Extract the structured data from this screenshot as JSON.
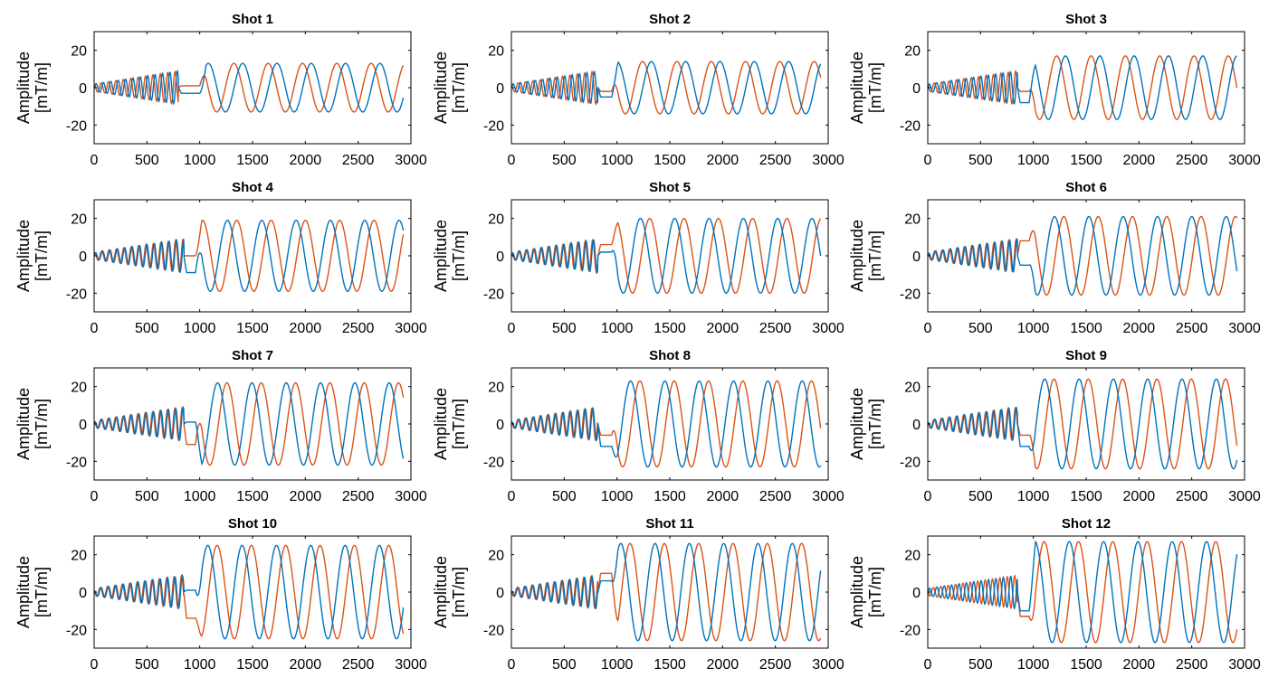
{
  "figure": {
    "colors": {
      "series_a": "#0072BD",
      "series_b": "#D95319",
      "axis": "#000000",
      "background": "#ffffff"
    }
  },
  "chart_data": [
    {
      "type": "line",
      "title": "Shot 1",
      "xlabel": "",
      "ylabel": [
        "Amplitude",
        "[mT/m]"
      ],
      "xlim": [
        0,
        3000
      ],
      "ylim": [
        -30,
        30
      ],
      "xticks": [
        0,
        500,
        1000,
        1500,
        2000,
        2500,
        3000
      ],
      "yticks": [
        -20,
        0,
        20
      ],
      "params": {
        "gap_start": 800,
        "gap_end": 1000,
        "series_a": {
          "plateau": -3,
          "amplitude": 13,
          "phase": 0.0
        },
        "series_b": {
          "plateau": 1,
          "amplitude": 13,
          "phase": 1.6
        }
      },
      "series": [
        {
          "name": "series_a",
          "color": "#0072BD"
        },
        {
          "name": "series_b",
          "color": "#D95319"
        }
      ]
    },
    {
      "type": "line",
      "title": "Shot 2",
      "xlabel": "",
      "ylabel": [
        "Amplitude",
        "[mT/m]"
      ],
      "xlim": [
        0,
        3000
      ],
      "ylim": [
        -30,
        30
      ],
      "xticks": [
        0,
        500,
        1000,
        1500,
        2000,
        2500,
        3000
      ],
      "yticks": [
        -20,
        0,
        20
      ],
      "params": {
        "gap_start": 820,
        "gap_end": 950,
        "series_a": {
          "plateau": -5,
          "amplitude": 14,
          "phase": 0.6
        },
        "series_b": {
          "plateau": -2,
          "amplitude": 14,
          "phase": 2.2
        }
      },
      "series": [
        {
          "name": "series_a",
          "color": "#0072BD"
        },
        {
          "name": "series_b",
          "color": "#D95319"
        }
      ]
    },
    {
      "type": "line",
      "title": "Shot 3",
      "xlabel": "",
      "ylabel": [
        "Amplitude",
        "[mT/m]"
      ],
      "xlim": [
        0,
        3000
      ],
      "ylim": [
        -30,
        30
      ],
      "xticks": [
        0,
        500,
        1000,
        1500,
        2000,
        2500,
        3000
      ],
      "yticks": [
        -20,
        0,
        20
      ],
      "params": {
        "gap_start": 850,
        "gap_end": 960,
        "series_a": {
          "plateau": -8,
          "amplitude": 17,
          "phase": 1.2
        },
        "series_b": {
          "plateau": -2,
          "amplitude": 17,
          "phase": 2.8
        }
      },
      "series": [
        {
          "name": "series_a",
          "color": "#0072BD"
        },
        {
          "name": "series_b",
          "color": "#D95319"
        }
      ]
    },
    {
      "type": "line",
      "title": "Shot 4",
      "xlabel": "",
      "ylabel": [
        "Amplitude",
        "[mT/m]"
      ],
      "xlim": [
        0,
        3000
      ],
      "ylim": [
        -30,
        30
      ],
      "xticks": [
        0,
        500,
        1000,
        1500,
        2000,
        2500,
        3000
      ],
      "yticks": [
        -20,
        0,
        20
      ],
      "params": {
        "gap_start": 850,
        "gap_end": 960,
        "series_a": {
          "plateau": -9,
          "amplitude": 19,
          "phase": 2.0
        },
        "series_b": {
          "plateau": 0,
          "amplitude": 19,
          "phase": 0.3
        }
      },
      "series": [
        {
          "name": "series_a",
          "color": "#0072BD"
        },
        {
          "name": "series_b",
          "color": "#D95319"
        }
      ]
    },
    {
      "type": "line",
      "title": "Shot 5",
      "xlabel": "",
      "ylabel": [
        "Amplitude",
        "[mT/m]"
      ],
      "xlim": [
        0,
        3000
      ],
      "ylim": [
        -30,
        30
      ],
      "xticks": [
        0,
        500,
        1000,
        1500,
        2000,
        2500,
        3000
      ],
      "yticks": [
        -20,
        0,
        20
      ],
      "params": {
        "gap_start": 820,
        "gap_end": 950,
        "series_a": {
          "plateau": 2,
          "amplitude": 20,
          "phase": 2.6
        },
        "series_b": {
          "plateau": 6,
          "amplitude": 20,
          "phase": 0.9
        }
      },
      "series": [
        {
          "name": "series_a",
          "color": "#0072BD"
        },
        {
          "name": "series_b",
          "color": "#D95319"
        }
      ]
    },
    {
      "type": "line",
      "title": "Shot 6",
      "xlabel": "",
      "ylabel": [
        "Amplitude",
        "[mT/m]"
      ],
      "xlim": [
        0,
        3000
      ],
      "ylim": [
        -30,
        30
      ],
      "xticks": [
        0,
        500,
        1000,
        1500,
        2000,
        2500,
        3000
      ],
      "yticks": [
        -20,
        0,
        20
      ],
      "params": {
        "gap_start": 850,
        "gap_end": 960,
        "series_a": {
          "plateau": -5,
          "amplitude": 21,
          "phase": 3.2
        },
        "series_b": {
          "plateau": 8,
          "amplitude": 21,
          "phase": 1.5
        }
      },
      "series": [
        {
          "name": "series_a",
          "color": "#0072BD"
        },
        {
          "name": "series_b",
          "color": "#D95319"
        }
      ]
    },
    {
      "type": "line",
      "title": "Shot 7",
      "xlabel": "",
      "ylabel": [
        "Amplitude",
        "[mT/m]"
      ],
      "xlim": [
        0,
        3000
      ],
      "ylim": [
        -30,
        30
      ],
      "xticks": [
        0,
        500,
        1000,
        1500,
        2000,
        2500,
        3000
      ],
      "yticks": [
        -20,
        0,
        20
      ],
      "params": {
        "gap_start": 850,
        "gap_end": 960,
        "series_a": {
          "plateau": 1,
          "amplitude": 22,
          "phase": 3.8
        },
        "series_b": {
          "plateau": -11,
          "amplitude": 22,
          "phase": 2.1
        }
      },
      "series": [
        {
          "name": "series_a",
          "color": "#0072BD"
        },
        {
          "name": "series_b",
          "color": "#D95319"
        }
      ]
    },
    {
      "type": "line",
      "title": "Shot 8",
      "xlabel": "",
      "ylabel": [
        "Amplitude",
        "[mT/m]"
      ],
      "xlim": [
        0,
        3000
      ],
      "ylim": [
        -30,
        30
      ],
      "xticks": [
        0,
        500,
        1000,
        1500,
        2000,
        2500,
        3000
      ],
      "yticks": [
        -20,
        0,
        20
      ],
      "params": {
        "gap_start": 820,
        "gap_end": 950,
        "series_a": {
          "plateau": -12,
          "amplitude": 23,
          "phase": 4.4
        },
        "series_b": {
          "plateau": -6,
          "amplitude": 23,
          "phase": 2.7
        }
      },
      "series": [
        {
          "name": "series_a",
          "color": "#0072BD"
        },
        {
          "name": "series_b",
          "color": "#D95319"
        }
      ]
    },
    {
      "type": "line",
      "title": "Shot 9",
      "xlabel": "",
      "ylabel": [
        "Amplitude",
        "[mT/m]"
      ],
      "xlim": [
        0,
        3000
      ],
      "ylim": [
        -30,
        30
      ],
      "xticks": [
        0,
        500,
        1000,
        1500,
        2000,
        2500,
        3000
      ],
      "yticks": [
        -20,
        0,
        20
      ],
      "params": {
        "gap_start": 850,
        "gap_end": 960,
        "series_a": {
          "plateau": -12,
          "amplitude": 24,
          "phase": 5.0
        },
        "series_b": {
          "plateau": -6,
          "amplitude": 24,
          "phase": 3.3
        }
      },
      "series": [
        {
          "name": "series_a",
          "color": "#0072BD"
        },
        {
          "name": "series_b",
          "color": "#D95319"
        }
      ]
    },
    {
      "type": "line",
      "title": "Shot 10",
      "xlabel": "",
      "ylabel": [
        "Amplitude",
        "[mT/m]"
      ],
      "xlim": [
        0,
        3000
      ],
      "ylim": [
        -30,
        30
      ],
      "xticks": [
        0,
        500,
        1000,
        1500,
        2000,
        2500,
        3000
      ],
      "yticks": [
        -20,
        0,
        20
      ],
      "params": {
        "gap_start": 850,
        "gap_end": 960,
        "series_a": {
          "plateau": 1,
          "amplitude": 25,
          "phase": 5.6
        },
        "series_b": {
          "plateau": -14,
          "amplitude": 25,
          "phase": 3.9
        }
      },
      "series": [
        {
          "name": "series_a",
          "color": "#0072BD"
        },
        {
          "name": "series_b",
          "color": "#D95319"
        }
      ]
    },
    {
      "type": "line",
      "title": "Shot 11",
      "xlabel": "",
      "ylabel": [
        "Amplitude",
        "[mT/m]"
      ],
      "xlim": [
        0,
        3000
      ],
      "ylim": [
        -30,
        30
      ],
      "xticks": [
        0,
        500,
        1000,
        1500,
        2000,
        2500,
        3000
      ],
      "yticks": [
        -20,
        0,
        20
      ],
      "params": {
        "gap_start": 820,
        "gap_end": 950,
        "series_a": {
          "plateau": 6,
          "amplitude": 26,
          "phase": 6.2
        },
        "series_b": {
          "plateau": 10,
          "amplitude": 26,
          "phase": 4.5
        }
      },
      "series": [
        {
          "name": "series_a",
          "color": "#0072BD"
        },
        {
          "name": "series_b",
          "color": "#D95319"
        }
      ]
    },
    {
      "type": "line",
      "title": "Shot 12",
      "xlabel": "",
      "ylabel": [
        "Amplitude",
        "[mT/m]"
      ],
      "xlim": [
        0,
        3000
      ],
      "ylim": [
        -30,
        30
      ],
      "xticks": [
        0,
        500,
        1000,
        1500,
        2000,
        2500,
        3000
      ],
      "yticks": [
        -20,
        0,
        20
      ],
      "params": {
        "gap_start": 850,
        "gap_end": 960,
        "series_a": {
          "plateau": -10,
          "amplitude": 27,
          "phase": 0.5
        },
        "series_b": {
          "plateau": -13,
          "amplitude": 27,
          "phase": 5.1
        }
      },
      "series": [
        {
          "name": "series_a",
          "color": "#0072BD"
        },
        {
          "name": "series_b",
          "color": "#D95319"
        }
      ]
    }
  ]
}
